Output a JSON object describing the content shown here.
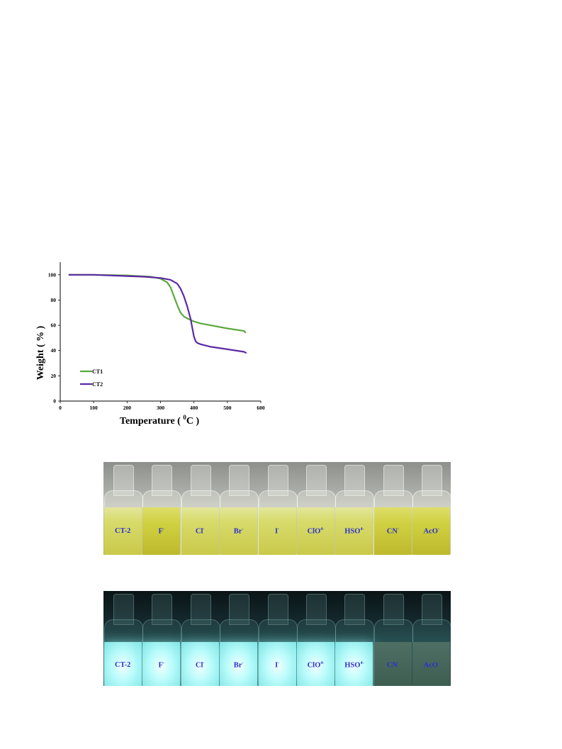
{
  "tga": {
    "ylabel": "Weight ( % )",
    "xlabel_prefix": "Temperature ( ",
    "xlabel_sup": "0",
    "xlabel_suffix": "C )",
    "xticks": [
      "0",
      "100",
      "200",
      "300",
      "400",
      "500",
      "600"
    ],
    "yticks": [
      "0",
      "20",
      "40",
      "60",
      "80",
      "100"
    ]
  },
  "chart_data": {
    "type": "line",
    "title": "",
    "xlabel": "Temperature ( 0C )",
    "ylabel": "Weight ( % )",
    "xlim": [
      0,
      600
    ],
    "ylim": [
      0,
      110
    ],
    "grid": false,
    "legend_position": "bottom-left",
    "series": [
      {
        "name": "CT1",
        "color": "#5aa83c",
        "x": [
          25,
          100,
          200,
          270,
          300,
          320,
          330,
          340,
          350,
          360,
          370,
          380,
          400,
          420,
          450,
          500,
          550,
          555
        ],
        "y": [
          100,
          100,
          99.5,
          98.5,
          97,
          94,
          90,
          83,
          76,
          70,
          67,
          65.5,
          63,
          61.5,
          60,
          57.5,
          55.5,
          54
        ]
      },
      {
        "name": "CT2",
        "color": "#5b2aa4",
        "x": [
          25,
          100,
          200,
          250,
          300,
          330,
          350,
          360,
          370,
          380,
          390,
          395,
          400,
          405,
          410,
          420,
          450,
          500,
          550,
          557
        ],
        "y": [
          100,
          100,
          99,
          98.5,
          97.5,
          96,
          93,
          89,
          83,
          75,
          65,
          58,
          51,
          47.5,
          46,
          45,
          43,
          41,
          39,
          38
        ]
      }
    ]
  },
  "photos": {
    "daylight": {
      "vials": [
        {
          "text": "CT-2",
          "sup": ""
        },
        {
          "text": "F",
          "sup": "-"
        },
        {
          "text": "Cl",
          "sup": "-"
        },
        {
          "text": "Br",
          "sup": "-"
        },
        {
          "text": "I",
          "sup": "-"
        },
        {
          "text": "ClO",
          "sup": "4-"
        },
        {
          "text": "HSO",
          "sup": "4-"
        },
        {
          "text": "CN",
          "sup": "-"
        },
        {
          "text": "AcO",
          "sup": "-"
        }
      ]
    },
    "uv": {
      "vials": [
        {
          "text": "CT-2",
          "sup": ""
        },
        {
          "text": "F",
          "sup": "-"
        },
        {
          "text": "Cl",
          "sup": "-"
        },
        {
          "text": "Br",
          "sup": "-"
        },
        {
          "text": "I",
          "sup": "-"
        },
        {
          "text": "ClO",
          "sup": "4-"
        },
        {
          "text": "HSO",
          "sup": "4-"
        },
        {
          "text": "CN",
          "sup": "-"
        },
        {
          "text": "AcO",
          "sup": "-"
        }
      ]
    }
  }
}
